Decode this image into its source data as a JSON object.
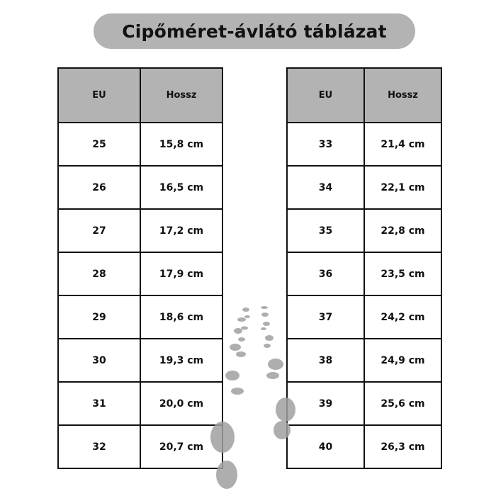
{
  "title": "Cipőméret-ávlátó táblázat",
  "colors": {
    "header_bg": "#b3b3b3",
    "title_bg": "#b3b3b3",
    "footprint": "#9a9a9a"
  },
  "decoration": "footprints-icon",
  "tables": [
    {
      "headers": [
        "EU",
        "Hossz"
      ],
      "rows": [
        [
          "25",
          "15,8 cm"
        ],
        [
          "26",
          "16,5 cm"
        ],
        [
          "27",
          "17,2 cm"
        ],
        [
          "28",
          "17,9 cm"
        ],
        [
          "29",
          "18,6 cm"
        ],
        [
          "30",
          "19,3 cm"
        ],
        [
          "31",
          "20,0 cm"
        ],
        [
          "32",
          "20,7 cm"
        ]
      ]
    },
    {
      "headers": [
        "EU",
        "Hossz"
      ],
      "rows": [
        [
          "33",
          "21,4 cm"
        ],
        [
          "34",
          "22,1 cm"
        ],
        [
          "35",
          "22,8 cm"
        ],
        [
          "36",
          "23,5 cm"
        ],
        [
          "37",
          "24,2 cm"
        ],
        [
          "38",
          "24,9 cm"
        ],
        [
          "39",
          "25,6 cm"
        ],
        [
          "40",
          "26,3 cm"
        ]
      ]
    }
  ]
}
